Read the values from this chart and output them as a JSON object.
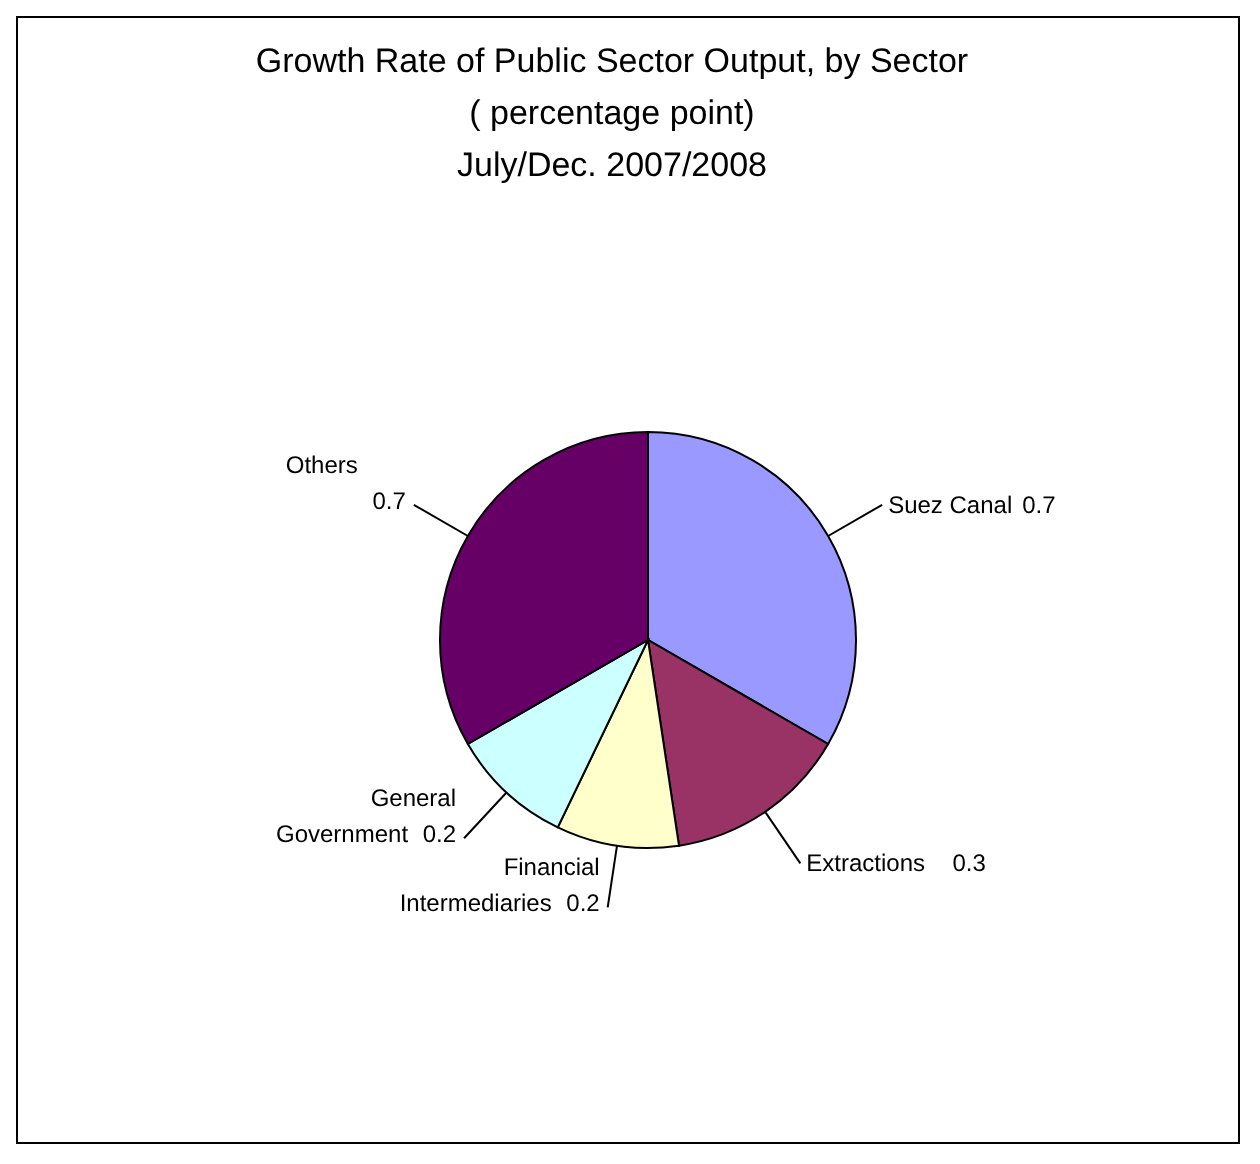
{
  "chart_data": {
    "type": "pie",
    "title": "Growth Rate of Public Sector Output, by Sector",
    "subtitle": "( percentage point)\nJuly/Dec. 2007/2008",
    "categories": [
      "Suez Canal",
      "Extractions",
      "Financial Intermediaries",
      "General Government",
      "Others"
    ],
    "values": [
      0.7,
      0.3,
      0.2,
      0.2,
      0.7
    ],
    "colors": [
      "#9999ff",
      "#993366",
      "#ffffcc",
      "#ccffff",
      "#660066"
    ],
    "data_labels": true
  }
}
